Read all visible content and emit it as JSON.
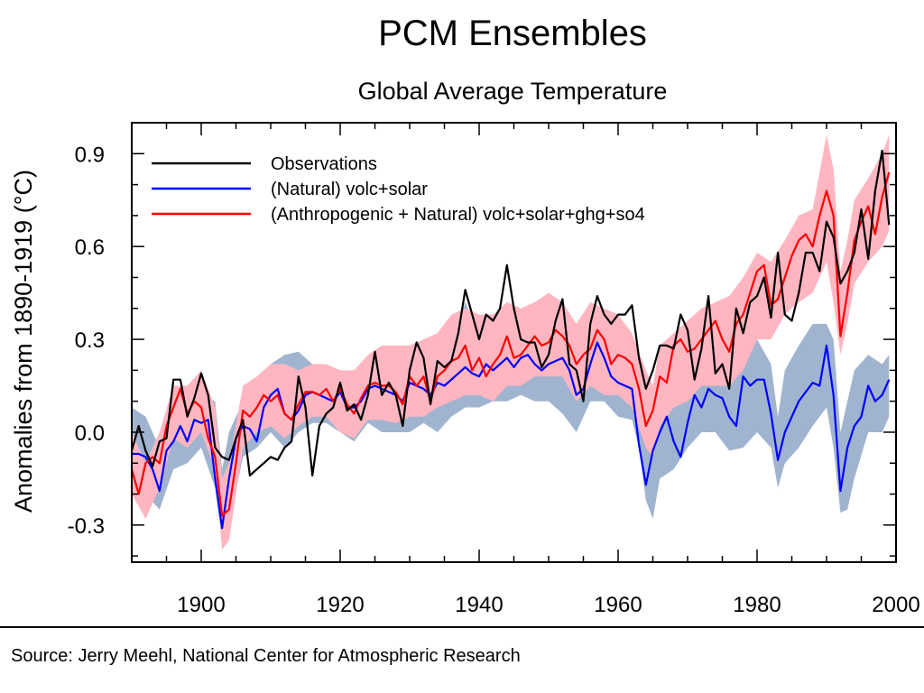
{
  "chart_data": {
    "type": "line",
    "title": "PCM Ensembles",
    "subtitle": "Global Average Temperature",
    "ylabel": "Anomalies from 1890-1919 (°C)",
    "xlabel": "",
    "xlim": [
      1890,
      2000
    ],
    "ylim": [
      -0.42,
      1.0
    ],
    "xticks": [
      1900,
      1920,
      1940,
      1960,
      1980,
      2000
    ],
    "xtick_labels": [
      "1900",
      "1920",
      "1940",
      "1960",
      "1980",
      "2000"
    ],
    "yticks": [
      -0.3,
      0.0,
      0.3,
      0.6,
      0.9
    ],
    "ytick_labels": [
      "-0.3",
      "0.0",
      "0.3",
      "0.6",
      "0.9"
    ],
    "legend_position": "top-left",
    "series": [
      {
        "name": "Observations",
        "color": "#000000",
        "x": [
          1890,
          1891,
          1892,
          1893,
          1894,
          1895,
          1896,
          1897,
          1898,
          1899,
          1900,
          1901,
          1902,
          1903,
          1904,
          1905,
          1906,
          1907,
          1908,
          1909,
          1910,
          1911,
          1912,
          1913,
          1914,
          1915,
          1916,
          1917,
          1918,
          1919,
          1920,
          1921,
          1922,
          1923,
          1924,
          1925,
          1926,
          1927,
          1928,
          1929,
          1930,
          1931,
          1932,
          1933,
          1934,
          1935,
          1936,
          1937,
          1938,
          1939,
          1940,
          1941,
          1942,
          1943,
          1944,
          1945,
          1946,
          1947,
          1948,
          1949,
          1950,
          1951,
          1952,
          1953,
          1954,
          1955,
          1956,
          1957,
          1958,
          1959,
          1960,
          1961,
          1962,
          1963,
          1964,
          1965,
          1966,
          1967,
          1968,
          1969,
          1970,
          1971,
          1972,
          1973,
          1974,
          1975,
          1976,
          1977,
          1978,
          1979,
          1980,
          1981,
          1982,
          1983,
          1984,
          1985,
          1986,
          1987,
          1988,
          1989,
          1990,
          1991,
          1992,
          1993,
          1994,
          1995,
          1996,
          1997,
          1998,
          1999
        ],
        "values": [
          -0.06,
          0.02,
          -0.06,
          -0.11,
          -0.03,
          -0.02,
          0.17,
          0.17,
          0.05,
          0.11,
          0.19,
          0.12,
          -0.05,
          -0.08,
          -0.09,
          -0.02,
          0.04,
          -0.14,
          -0.12,
          -0.1,
          -0.08,
          -0.09,
          -0.05,
          -0.03,
          0.18,
          0.08,
          -0.14,
          0.02,
          0.06,
          0.08,
          0.16,
          0.07,
          0.09,
          0.04,
          0.12,
          0.26,
          0.12,
          0.16,
          0.12,
          0.02,
          0.2,
          0.29,
          0.24,
          0.09,
          0.23,
          0.21,
          0.23,
          0.32,
          0.46,
          0.38,
          0.3,
          0.38,
          0.36,
          0.4,
          0.54,
          0.4,
          0.3,
          0.29,
          0.29,
          0.21,
          0.25,
          0.36,
          0.43,
          0.22,
          0.2,
          0.1,
          0.35,
          0.44,
          0.38,
          0.35,
          0.38,
          0.38,
          0.41,
          0.24,
          0.14,
          0.2,
          0.28,
          0.28,
          0.27,
          0.38,
          0.33,
          0.17,
          0.27,
          0.44,
          0.19,
          0.22,
          0.14,
          0.4,
          0.32,
          0.42,
          0.44,
          0.5,
          0.37,
          0.58,
          0.38,
          0.36,
          0.45,
          0.58,
          0.58,
          0.52,
          0.68,
          0.63,
          0.48,
          0.52,
          0.58,
          0.72,
          0.56,
          0.78,
          0.91,
          0.67
        ]
      },
      {
        "name": "(Natural) volc+solar",
        "color": "#0000ff",
        "x": [
          1890,
          1891,
          1892,
          1893,
          1894,
          1895,
          1896,
          1897,
          1898,
          1899,
          1900,
          1901,
          1902,
          1903,
          1904,
          1905,
          1906,
          1907,
          1908,
          1909,
          1910,
          1911,
          1912,
          1913,
          1914,
          1915,
          1916,
          1917,
          1918,
          1919,
          1920,
          1921,
          1922,
          1923,
          1924,
          1925,
          1926,
          1927,
          1928,
          1929,
          1930,
          1931,
          1932,
          1933,
          1934,
          1935,
          1936,
          1937,
          1938,
          1939,
          1940,
          1941,
          1942,
          1943,
          1944,
          1945,
          1946,
          1947,
          1948,
          1949,
          1950,
          1951,
          1952,
          1953,
          1954,
          1955,
          1956,
          1957,
          1958,
          1959,
          1960,
          1961,
          1962,
          1963,
          1964,
          1965,
          1966,
          1967,
          1968,
          1969,
          1970,
          1971,
          1972,
          1973,
          1974,
          1975,
          1976,
          1977,
          1978,
          1979,
          1980,
          1981,
          1982,
          1983,
          1984,
          1985,
          1986,
          1987,
          1988,
          1989,
          1990,
          1991,
          1992,
          1993,
          1994,
          1995,
          1996,
          1997,
          1998,
          1999
        ],
        "values": [
          -0.07,
          -0.07,
          -0.08,
          -0.12,
          -0.19,
          -0.06,
          -0.03,
          0.02,
          -0.03,
          0.04,
          0.03,
          0.04,
          -0.15,
          -0.31,
          -0.15,
          -0.02,
          0.02,
          0.01,
          -0.03,
          0.08,
          0.12,
          0.14,
          0.06,
          0.04,
          0.07,
          0.12,
          0.13,
          0.12,
          0.11,
          0.1,
          0.13,
          0.08,
          0.08,
          0.1,
          0.14,
          0.15,
          0.14,
          0.13,
          0.12,
          0.1,
          0.16,
          0.15,
          0.14,
          0.12,
          0.16,
          0.15,
          0.17,
          0.19,
          0.21,
          0.19,
          0.18,
          0.22,
          0.2,
          0.22,
          0.24,
          0.21,
          0.24,
          0.25,
          0.22,
          0.2,
          0.22,
          0.23,
          0.24,
          0.2,
          0.12,
          0.14,
          0.22,
          0.29,
          0.24,
          0.18,
          0.16,
          0.15,
          0.14,
          -0.04,
          -0.17,
          -0.06,
          0.0,
          0.05,
          -0.03,
          -0.08,
          0.03,
          0.12,
          0.08,
          0.14,
          0.12,
          0.11,
          0.05,
          0.02,
          0.18,
          0.15,
          0.17,
          0.17,
          0.06,
          -0.09,
          0.0,
          0.05,
          0.1,
          0.13,
          0.16,
          0.15,
          0.28,
          0.12,
          -0.19,
          -0.05,
          0.02,
          0.05,
          0.15,
          0.1,
          0.12,
          0.17
        ]
      },
      {
        "name": "(Anthropogenic + Natural) volc+solar+ghg+so4",
        "color": "#ff0000",
        "x": [
          1890,
          1891,
          1892,
          1893,
          1894,
          1895,
          1896,
          1897,
          1898,
          1899,
          1900,
          1901,
          1902,
          1903,
          1904,
          1905,
          1906,
          1907,
          1908,
          1909,
          1910,
          1911,
          1912,
          1913,
          1914,
          1915,
          1916,
          1917,
          1918,
          1919,
          1920,
          1921,
          1922,
          1923,
          1924,
          1925,
          1926,
          1927,
          1928,
          1929,
          1930,
          1931,
          1932,
          1933,
          1934,
          1935,
          1936,
          1937,
          1938,
          1939,
          1940,
          1941,
          1942,
          1943,
          1944,
          1945,
          1946,
          1947,
          1948,
          1949,
          1950,
          1951,
          1952,
          1953,
          1954,
          1955,
          1956,
          1957,
          1958,
          1959,
          1960,
          1961,
          1962,
          1963,
          1964,
          1965,
          1966,
          1967,
          1968,
          1969,
          1970,
          1971,
          1972,
          1973,
          1974,
          1975,
          1976,
          1977,
          1978,
          1979,
          1980,
          1981,
          1982,
          1983,
          1984,
          1985,
          1986,
          1987,
          1988,
          1989,
          1990,
          1991,
          1992,
          1993,
          1994,
          1995,
          1996,
          1997,
          1998,
          1999
        ],
        "values": [
          -0.12,
          -0.2,
          -0.1,
          -0.08,
          -0.1,
          0.02,
          0.08,
          0.14,
          0.06,
          0.1,
          0.08,
          -0.02,
          -0.08,
          -0.27,
          -0.25,
          -0.1,
          0.07,
          0.05,
          0.08,
          0.12,
          0.1,
          0.12,
          0.06,
          0.04,
          0.09,
          0.13,
          0.13,
          0.12,
          0.14,
          0.1,
          0.14,
          0.09,
          0.06,
          0.11,
          0.15,
          0.16,
          0.15,
          0.15,
          0.13,
          0.09,
          0.18,
          0.15,
          0.18,
          0.1,
          0.18,
          0.2,
          0.23,
          0.24,
          0.28,
          0.2,
          0.24,
          0.18,
          0.22,
          0.25,
          0.31,
          0.24,
          0.25,
          0.28,
          0.31,
          0.28,
          0.29,
          0.33,
          0.31,
          0.28,
          0.22,
          0.25,
          0.27,
          0.33,
          0.3,
          0.22,
          0.25,
          0.24,
          0.22,
          0.14,
          0.02,
          0.07,
          0.18,
          0.16,
          0.28,
          0.3,
          0.26,
          0.27,
          0.3,
          0.33,
          0.36,
          0.3,
          0.26,
          0.35,
          0.38,
          0.45,
          0.52,
          0.54,
          0.41,
          0.43,
          0.5,
          0.57,
          0.62,
          0.64,
          0.6,
          0.7,
          0.78,
          0.7,
          0.31,
          0.45,
          0.62,
          0.68,
          0.73,
          0.64,
          0.76,
          0.84
        ]
      }
    ],
    "bands": [
      {
        "series": "(Natural) volc+solar",
        "color": "#a1b4cf",
        "x": [
          1890,
          1892,
          1894,
          1896,
          1898,
          1900,
          1902,
          1903,
          1904,
          1906,
          1908,
          1910,
          1912,
          1914,
          1916,
          1918,
          1920,
          1922,
          1924,
          1926,
          1928,
          1930,
          1932,
          1934,
          1936,
          1938,
          1940,
          1942,
          1944,
          1946,
          1948,
          1950,
          1952,
          1954,
          1956,
          1958,
          1960,
          1962,
          1963,
          1964,
          1965,
          1966,
          1968,
          1970,
          1972,
          1974,
          1976,
          1978,
          1980,
          1982,
          1983,
          1984,
          1986,
          1988,
          1990,
          1991,
          1992,
          1993,
          1994,
          1996,
          1998,
          1999
        ],
        "low": [
          -0.15,
          -0.2,
          -0.25,
          -0.12,
          -0.1,
          -0.05,
          -0.18,
          -0.35,
          -0.3,
          -0.08,
          -0.05,
          0.0,
          -0.05,
          0.0,
          0.03,
          0.03,
          0.0,
          -0.03,
          0.03,
          0.0,
          0.0,
          0.0,
          0.03,
          0.0,
          0.05,
          0.08,
          0.08,
          0.1,
          0.1,
          0.12,
          0.1,
          0.1,
          0.06,
          0.0,
          0.1,
          0.1,
          0.05,
          0.04,
          -0.05,
          -0.22,
          -0.28,
          -0.15,
          -0.12,
          -0.05,
          0.0,
          0.0,
          -0.06,
          -0.05,
          0.0,
          -0.05,
          -0.18,
          -0.1,
          -0.05,
          0.02,
          0.08,
          -0.05,
          -0.26,
          -0.25,
          -0.15,
          0.0,
          0.0,
          0.05
        ],
        "high": [
          0.08,
          0.05,
          -0.05,
          0.12,
          0.05,
          0.12,
          0.1,
          -0.12,
          0.0,
          0.1,
          0.15,
          0.22,
          0.25,
          0.26,
          0.22,
          0.2,
          0.2,
          0.18,
          0.22,
          0.25,
          0.22,
          0.22,
          0.25,
          0.25,
          0.28,
          0.42,
          0.32,
          0.3,
          0.32,
          0.34,
          0.34,
          0.31,
          0.31,
          0.28,
          0.35,
          0.38,
          0.28,
          0.22,
          0.15,
          0.05,
          0.1,
          0.13,
          0.12,
          0.18,
          0.22,
          0.2,
          0.22,
          0.25,
          0.3,
          0.22,
          0.05,
          0.2,
          0.28,
          0.35,
          0.35,
          0.3,
          0.0,
          0.1,
          0.2,
          0.25,
          0.22,
          0.25
        ]
      },
      {
        "series": "(Anthropogenic + Natural) volc+solar+ghg+so4",
        "color": "#ffb6c1",
        "x": [
          1890,
          1892,
          1894,
          1896,
          1898,
          1900,
          1902,
          1903,
          1904,
          1906,
          1908,
          1910,
          1912,
          1914,
          1916,
          1918,
          1920,
          1922,
          1924,
          1926,
          1928,
          1930,
          1932,
          1934,
          1936,
          1938,
          1940,
          1942,
          1944,
          1946,
          1948,
          1950,
          1952,
          1954,
          1956,
          1958,
          1960,
          1962,
          1964,
          1965,
          1966,
          1968,
          1970,
          1972,
          1974,
          1976,
          1978,
          1980,
          1982,
          1984,
          1986,
          1988,
          1990,
          1991,
          1992,
          1993,
          1994,
          1996,
          1998,
          1999
        ],
        "low": [
          -0.2,
          -0.28,
          -0.18,
          -0.02,
          -0.05,
          0.0,
          -0.12,
          -0.38,
          -0.35,
          -0.05,
          0.0,
          0.02,
          -0.02,
          0.02,
          0.05,
          0.05,
          0.0,
          -0.02,
          0.04,
          0.04,
          0.03,
          0.05,
          0.05,
          0.08,
          0.1,
          0.12,
          0.12,
          0.1,
          0.15,
          0.15,
          0.18,
          0.18,
          0.18,
          0.1,
          0.15,
          0.12,
          0.12,
          0.08,
          -0.05,
          -0.08,
          0.02,
          0.08,
          0.1,
          0.15,
          0.15,
          0.15,
          0.2,
          0.3,
          0.3,
          0.38,
          0.42,
          0.45,
          0.55,
          0.42,
          0.25,
          0.35,
          0.48,
          0.55,
          0.6,
          0.65
        ],
        "high": [
          0.0,
          -0.1,
          0.0,
          0.15,
          0.15,
          0.2,
          0.08,
          -0.15,
          -0.1,
          0.15,
          0.18,
          0.22,
          0.22,
          0.2,
          0.22,
          0.22,
          0.2,
          0.2,
          0.25,
          0.28,
          0.28,
          0.28,
          0.3,
          0.32,
          0.38,
          0.4,
          0.38,
          0.38,
          0.42,
          0.4,
          0.42,
          0.45,
          0.42,
          0.35,
          0.42,
          0.4,
          0.38,
          0.32,
          0.2,
          0.15,
          0.28,
          0.32,
          0.36,
          0.4,
          0.42,
          0.44,
          0.5,
          0.58,
          0.55,
          0.62,
          0.7,
          0.72,
          0.96,
          0.85,
          0.52,
          0.62,
          0.75,
          0.82,
          0.9,
          0.96
        ]
      }
    ]
  },
  "footer": {
    "source": "Source:  Jerry Meehl, National Center for Atmospheric Research"
  }
}
